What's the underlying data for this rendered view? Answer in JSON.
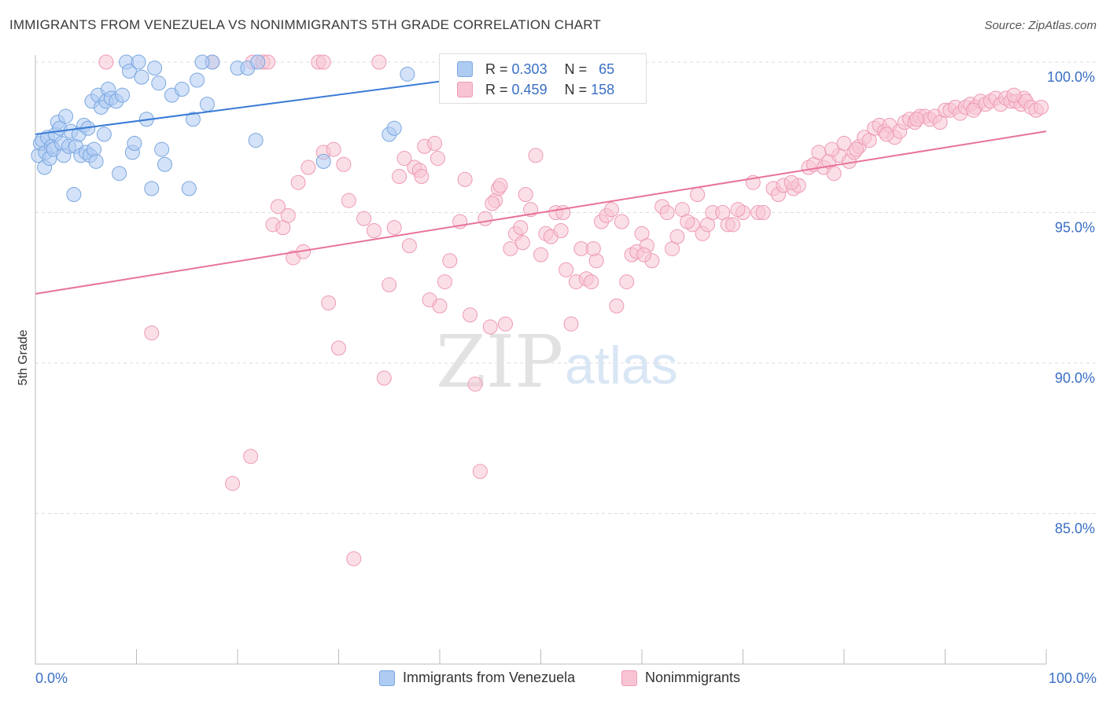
{
  "title": "IMMIGRANTS FROM VENEZUELA VS NONIMMIGRANTS 5TH GRADE CORRELATION CHART",
  "source": "Source: ZipAtlas.com",
  "watermark": {
    "zip": "ZIP",
    "atlas": "atlas"
  },
  "stats": {
    "r_label": "R =",
    "n_label": "N =",
    "rows": [
      {
        "r": "0.303",
        "n": "65",
        "color": "#aecbf2",
        "border": "#7aa7e0"
      },
      {
        "r": "0.459",
        "n": "158",
        "color": "#f8c4d4",
        "border": "#ee9ab4"
      }
    ]
  },
  "chart_data": {
    "type": "scatter",
    "title": "IMMIGRANTS FROM VENEZUELA VS NONIMMIGRANTS 5TH GRADE CORRELATION CHART",
    "xlabel": "",
    "ylabel": "5th Grade",
    "xlim": [
      0,
      100
    ],
    "ylim": [
      80.5,
      100.5
    ],
    "x_tick_labels": [
      "0.0%",
      "100.0%"
    ],
    "y_ticks": [
      85,
      90,
      95,
      100
    ],
    "y_tick_labels": [
      "85.0%",
      "90.0%",
      "95.0%",
      "100.0%"
    ],
    "grid": true,
    "legend_position": "bottom",
    "colors": {
      "blue": "#3a7bd5",
      "pink": "#e8739a",
      "blue_fill": "#aecbf2",
      "pink_fill": "#f8c4d4"
    },
    "series": [
      {
        "name": "Immigrants from Venezuela",
        "color": "#3a7bd5",
        "trend": {
          "x": [
            0,
            41
          ],
          "y": [
            97.6,
            99.4
          ]
        },
        "points": [
          [
            0.3,
            96.9
          ],
          [
            0.5,
            97.3
          ],
          [
            0.7,
            97.4
          ],
          [
            0.9,
            96.5
          ],
          [
            1.0,
            97.0
          ],
          [
            1.2,
            97.5
          ],
          [
            1.4,
            96.8
          ],
          [
            1.6,
            97.2
          ],
          [
            1.8,
            97.1
          ],
          [
            2.0,
            97.6
          ],
          [
            2.2,
            98.0
          ],
          [
            2.4,
            97.8
          ],
          [
            2.6,
            97.3
          ],
          [
            2.8,
            96.9
          ],
          [
            3.0,
            98.2
          ],
          [
            3.3,
            97.2
          ],
          [
            3.5,
            97.7
          ],
          [
            3.8,
            95.6
          ],
          [
            4.0,
            97.2
          ],
          [
            4.3,
            97.6
          ],
          [
            4.5,
            96.9
          ],
          [
            4.8,
            97.9
          ],
          [
            5.0,
            97.0
          ],
          [
            5.2,
            97.8
          ],
          [
            5.4,
            96.9
          ],
          [
            5.6,
            98.7
          ],
          [
            5.8,
            97.1
          ],
          [
            6.0,
            96.7
          ],
          [
            6.2,
            98.9
          ],
          [
            6.5,
            98.5
          ],
          [
            6.8,
            97.6
          ],
          [
            7.0,
            98.7
          ],
          [
            7.2,
            99.1
          ],
          [
            7.5,
            98.8
          ],
          [
            8.0,
            98.7
          ],
          [
            8.3,
            96.3
          ],
          [
            8.6,
            98.9
          ],
          [
            9.0,
            100.0
          ],
          [
            9.3,
            99.7
          ],
          [
            9.6,
            97.0
          ],
          [
            9.8,
            97.3
          ],
          [
            10.2,
            100.0
          ],
          [
            10.5,
            99.5
          ],
          [
            11.0,
            98.1
          ],
          [
            11.5,
            95.8
          ],
          [
            11.8,
            99.8
          ],
          [
            12.2,
            99.3
          ],
          [
            12.5,
            97.1
          ],
          [
            12.8,
            96.6
          ],
          [
            13.5,
            98.9
          ],
          [
            14.5,
            99.1
          ],
          [
            15.2,
            95.8
          ],
          [
            15.6,
            98.1
          ],
          [
            16.0,
            99.4
          ],
          [
            17.0,
            98.6
          ],
          [
            17.5,
            100.0
          ],
          [
            20.0,
            99.8
          ],
          [
            21.0,
            99.8
          ],
          [
            21.8,
            97.4
          ],
          [
            22.0,
            100.0
          ],
          [
            28.5,
            96.7
          ],
          [
            35.0,
            97.6
          ],
          [
            35.5,
            97.8
          ],
          [
            36.8,
            99.6
          ],
          [
            16.5,
            100.0
          ]
        ]
      },
      {
        "name": "Nonimmigrants",
        "color": "#e8739a",
        "trend": {
          "x": [
            0,
            100
          ],
          "y": [
            92.3,
            97.7
          ]
        },
        "points": [
          [
            7.0,
            100.0
          ],
          [
            17.5,
            100.0
          ],
          [
            21.5,
            100.0
          ],
          [
            22.5,
            100.0
          ],
          [
            23.0,
            100.0
          ],
          [
            28.0,
            100.0
          ],
          [
            28.5,
            100.0
          ],
          [
            34.0,
            100.0
          ],
          [
            11.5,
            91.0
          ],
          [
            19.5,
            86.0
          ],
          [
            21.3,
            86.9
          ],
          [
            23.5,
            94.6
          ],
          [
            24.0,
            95.2
          ],
          [
            24.5,
            94.5
          ],
          [
            25.0,
            94.9
          ],
          [
            25.5,
            93.5
          ],
          [
            26.0,
            96.0
          ],
          [
            26.5,
            93.7
          ],
          [
            27.0,
            96.5
          ],
          [
            28.5,
            97.0
          ],
          [
            29.0,
            92.0
          ],
          [
            29.5,
            97.1
          ],
          [
            30.0,
            90.5
          ],
          [
            30.5,
            96.6
          ],
          [
            31.0,
            95.4
          ],
          [
            31.5,
            83.5
          ],
          [
            32.5,
            94.8
          ],
          [
            33.5,
            94.4
          ],
          [
            34.5,
            89.5
          ],
          [
            35.0,
            92.6
          ],
          [
            35.5,
            94.5
          ],
          [
            36.0,
            96.2
          ],
          [
            36.5,
            96.8
          ],
          [
            37.0,
            93.9
          ],
          [
            37.5,
            96.5
          ],
          [
            38.0,
            96.4
          ],
          [
            38.5,
            97.2
          ],
          [
            39.0,
            92.1
          ],
          [
            39.5,
            97.3
          ],
          [
            39.8,
            96.8
          ],
          [
            40.0,
            91.9
          ],
          [
            40.5,
            92.7
          ],
          [
            41.0,
            93.4
          ],
          [
            42.0,
            94.7
          ],
          [
            42.5,
            96.1
          ],
          [
            43.0,
            91.6
          ],
          [
            43.5,
            89.3
          ],
          [
            44.0,
            86.4
          ],
          [
            44.5,
            94.8
          ],
          [
            45.0,
            91.2
          ],
          [
            45.5,
            95.4
          ],
          [
            45.8,
            95.8
          ],
          [
            46.0,
            95.9
          ],
          [
            46.5,
            91.3
          ],
          [
            47.0,
            93.8
          ],
          [
            47.5,
            94.3
          ],
          [
            48.0,
            94.5
          ],
          [
            48.5,
            95.6
          ],
          [
            49.0,
            95.1
          ],
          [
            49.5,
            96.9
          ],
          [
            50.0,
            93.6
          ],
          [
            50.5,
            94.3
          ],
          [
            51.0,
            94.2
          ],
          [
            51.5,
            95.0
          ],
          [
            52.0,
            94.4
          ],
          [
            52.5,
            93.1
          ],
          [
            53.0,
            91.3
          ],
          [
            53.5,
            92.7
          ],
          [
            54.0,
            93.8
          ],
          [
            54.5,
            92.8
          ],
          [
            55.0,
            92.7
          ],
          [
            55.5,
            93.4
          ],
          [
            56.0,
            94.7
          ],
          [
            56.5,
            94.9
          ],
          [
            57.0,
            95.1
          ],
          [
            57.5,
            91.9
          ],
          [
            58.0,
            94.7
          ],
          [
            58.5,
            92.7
          ],
          [
            59.0,
            93.6
          ],
          [
            59.5,
            93.7
          ],
          [
            60.0,
            94.3
          ],
          [
            60.5,
            93.9
          ],
          [
            61.0,
            93.4
          ],
          [
            62.0,
            95.2
          ],
          [
            62.5,
            95.0
          ],
          [
            63.0,
            93.8
          ],
          [
            63.5,
            94.2
          ],
          [
            64.0,
            95.1
          ],
          [
            65.0,
            94.6
          ],
          [
            65.5,
            95.6
          ],
          [
            66.0,
            94.3
          ],
          [
            66.5,
            94.6
          ],
          [
            67.0,
            95.0
          ],
          [
            68.0,
            95.0
          ],
          [
            68.5,
            94.6
          ],
          [
            69.0,
            94.6
          ],
          [
            70.0,
            95.0
          ],
          [
            71.0,
            96.0
          ],
          [
            71.5,
            95.0
          ],
          [
            72.0,
            95.0
          ],
          [
            73.0,
            95.8
          ],
          [
            73.5,
            95.6
          ],
          [
            74.0,
            95.9
          ],
          [
            75.0,
            95.8
          ],
          [
            75.5,
            95.9
          ],
          [
            76.5,
            96.5
          ],
          [
            77.0,
            96.6
          ],
          [
            77.5,
            97.0
          ],
          [
            78.0,
            96.5
          ],
          [
            78.5,
            96.7
          ],
          [
            79.0,
            96.3
          ],
          [
            79.5,
            96.9
          ],
          [
            80.0,
            97.3
          ],
          [
            80.5,
            96.7
          ],
          [
            81.0,
            97.0
          ],
          [
            81.5,
            97.2
          ],
          [
            82.0,
            97.5
          ],
          [
            82.5,
            97.4
          ],
          [
            83.0,
            97.8
          ],
          [
            83.5,
            97.9
          ],
          [
            84.0,
            97.7
          ],
          [
            84.5,
            97.9
          ],
          [
            85.0,
            97.5
          ],
          [
            85.5,
            97.7
          ],
          [
            86.0,
            98.0
          ],
          [
            86.5,
            98.1
          ],
          [
            87.0,
            98.0
          ],
          [
            87.5,
            98.2
          ],
          [
            88.0,
            98.2
          ],
          [
            88.5,
            98.1
          ],
          [
            89.0,
            98.2
          ],
          [
            89.5,
            98.0
          ],
          [
            90.0,
            98.4
          ],
          [
            90.5,
            98.4
          ],
          [
            91.0,
            98.5
          ],
          [
            91.5,
            98.3
          ],
          [
            92.0,
            98.5
          ],
          [
            92.5,
            98.6
          ],
          [
            93.0,
            98.5
          ],
          [
            93.5,
            98.7
          ],
          [
            94.0,
            98.6
          ],
          [
            94.5,
            98.7
          ],
          [
            95.0,
            98.8
          ],
          [
            95.5,
            98.6
          ],
          [
            96.0,
            98.8
          ],
          [
            96.5,
            98.7
          ],
          [
            97.0,
            98.7
          ],
          [
            97.5,
            98.6
          ],
          [
            97.8,
            98.8
          ],
          [
            98.0,
            98.7
          ],
          [
            98.5,
            98.5
          ],
          [
            99.0,
            98.4
          ],
          [
            99.5,
            98.5
          ],
          [
            45.2,
            95.3
          ],
          [
            38.2,
            96.2
          ],
          [
            64.5,
            94.7
          ],
          [
            78.8,
            97.1
          ],
          [
            87.2,
            98.1
          ],
          [
            92.8,
            98.4
          ],
          [
            96.8,
            98.9
          ],
          [
            84.2,
            97.6
          ],
          [
            81.2,
            97.1
          ],
          [
            74.8,
            96.0
          ],
          [
            69.5,
            95.1
          ],
          [
            60.2,
            93.6
          ],
          [
            55.2,
            93.8
          ],
          [
            52.2,
            95.0
          ],
          [
            48.2,
            94.0
          ]
        ]
      }
    ]
  },
  "legend": {
    "items": [
      {
        "label": "Immigrants from Venezuela",
        "color": "#aecbf2",
        "border": "#7aa7e0"
      },
      {
        "label": "Nonimmigrants",
        "color": "#f8c4d4",
        "border": "#ee9ab4"
      }
    ]
  }
}
